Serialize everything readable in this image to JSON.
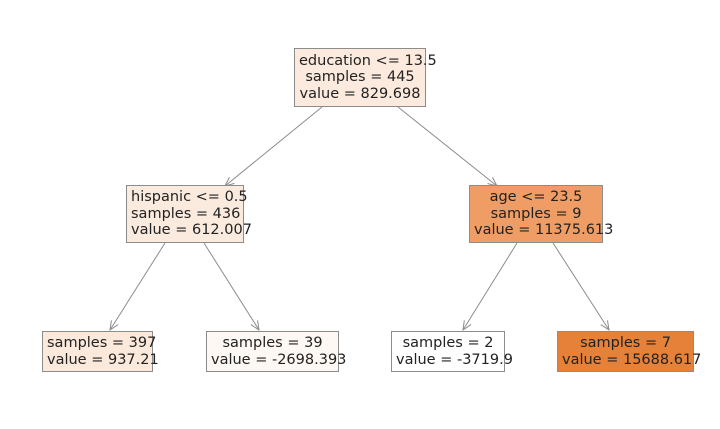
{
  "nodes": {
    "root": {
      "lines": [
        "education <= 13.5",
        "samples = 445",
        "value = 829.698"
      ],
      "fill": "#fbeadd"
    },
    "left": {
      "lines": [
        "hispanic <= 0.5",
        "samples = 436",
        "value = 612.007"
      ],
      "fill": "#fbebdf"
    },
    "right": {
      "lines": [
        "age <= 23.5",
        "samples = 9",
        "value = 11375.613"
      ],
      "fill": "#ef9d64"
    },
    "ll": {
      "lines": [
        "samples = 397",
        "value = 937.21"
      ],
      "fill": "#fbe9db"
    },
    "lr": {
      "lines": [
        "samples = 39",
        "value = -2698.393"
      ],
      "fill": "#fef8f4"
    },
    "rl": {
      "lines": [
        "samples = 2",
        "value = -3719.9"
      ],
      "fill": "#ffffff"
    },
    "rr": {
      "lines": [
        "samples = 7",
        "value = 15688.617"
      ],
      "fill": "#e58139"
    }
  },
  "edges": [
    [
      "root",
      "left"
    ],
    [
      "root",
      "right"
    ],
    [
      "left",
      "ll"
    ],
    [
      "left",
      "lr"
    ],
    [
      "right",
      "rl"
    ],
    [
      "right",
      "rr"
    ]
  ]
}
